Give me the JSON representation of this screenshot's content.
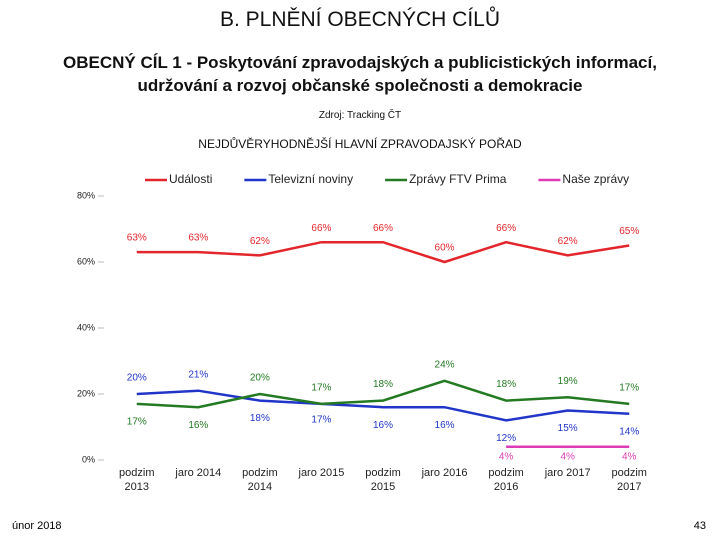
{
  "header": {
    "title": "B. PLNĚNÍ OBECNÝCH CÍLŮ",
    "subtitle": [
      "OBECNÝ CÍL 1 - Poskytování zpravodajských a publicistických informací,",
      "udržování a rozvoj občanské společnosti a demokracie"
    ],
    "source": "Zdroj: Tracking ČT"
  },
  "chart_data": {
    "type": "line",
    "title": "NEJDŮVĚRYHODNĚJŠÍ HLAVNÍ ZPRAVODAJSKÝ POŘAD",
    "categories": [
      "podzim 2013",
      "jaro 2014",
      "podzim 2014",
      "jaro 2015",
      "podzim 2015",
      "jaro 2016",
      "podzim 2016",
      "jaro 2017",
      "podzim 2017"
    ],
    "series": [
      {
        "name": "Události",
        "color": "#e3262b",
        "values": [
          63,
          63,
          62,
          66,
          66,
          60,
          66,
          62,
          65
        ],
        "value_labels": [
          "63%",
          "63%",
          "62%",
          "66%",
          "66%",
          "60%",
          "66%",
          "62%",
          "65%"
        ]
      },
      {
        "name": "Televizní noviny",
        "color": "#2136c8",
        "values": [
          20,
          21,
          18,
          17,
          16,
          16,
          12,
          15,
          14
        ],
        "value_labels": [
          "20%",
          "21%",
          "18%",
          "17%",
          "16%",
          "16%",
          "12%",
          "15%",
          "14%"
        ]
      },
      {
        "name": "Zprávy FTV Prima",
        "color": "#237a23",
        "values": [
          17,
          16,
          20,
          17,
          18,
          24,
          18,
          19,
          17
        ],
        "value_labels": [
          "17%",
          "16%",
          "20%",
          "17%",
          "18%",
          "24%",
          "18%",
          "19%",
          "17%"
        ]
      },
      {
        "name": "Naše zprávy",
        "color": "#dd3cb4",
        "values": [
          null,
          null,
          null,
          null,
          null,
          null,
          4,
          4,
          4
        ],
        "value_labels": [
          null,
          null,
          null,
          null,
          null,
          null,
          "4%",
          "4%",
          "4%"
        ]
      }
    ],
    "ylim": [
      0,
      80
    ],
    "yticks": [
      {
        "value": 0,
        "label": "0%"
      },
      {
        "value": 20,
        "label": "20%"
      },
      {
        "value": 40,
        "label": "40%"
      },
      {
        "value": 60,
        "label": "60%"
      },
      {
        "value": 80,
        "label": "80%"
      }
    ],
    "grid": false,
    "legend": "top"
  },
  "footer": {
    "date": "únor 2018",
    "page": "43"
  }
}
